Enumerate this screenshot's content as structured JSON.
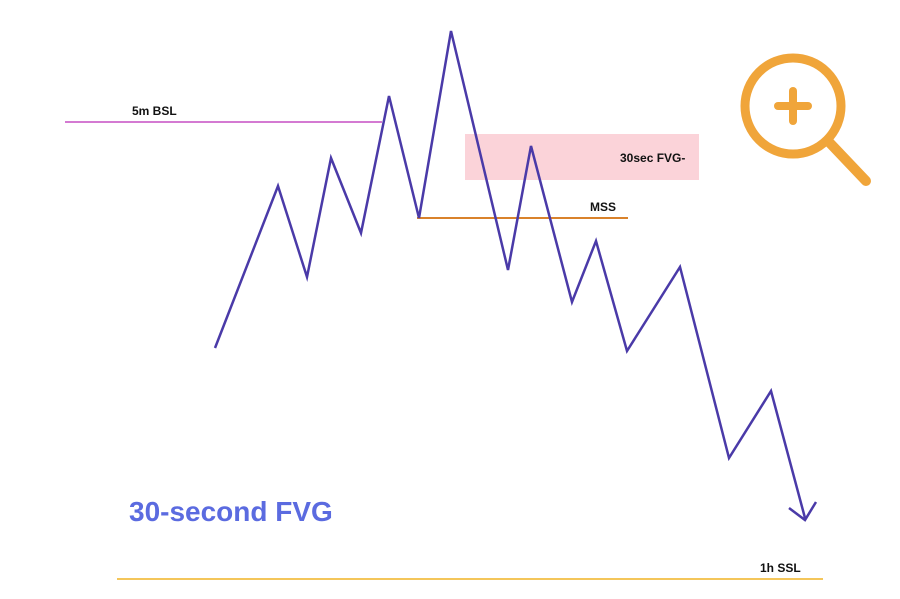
{
  "title": "30-second FVG",
  "labels": {
    "bsl": "5m BSL",
    "fvg_zone": "30sec FVG-",
    "mss": "MSS",
    "ssl": "1h SSL"
  }
}
